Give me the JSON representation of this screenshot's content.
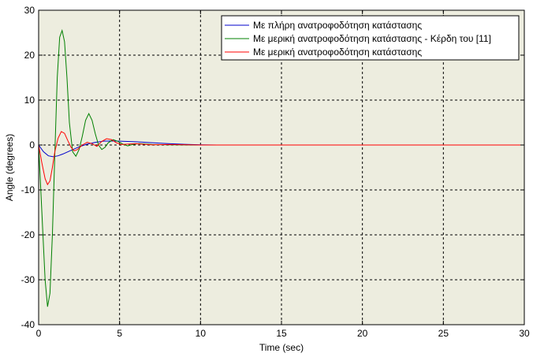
{
  "chart_data": {
    "type": "line",
    "title": "",
    "xlabel": "Time (sec)",
    "ylabel": "Angle (degrees)",
    "xlim": [
      0,
      30
    ],
    "ylim": [
      -40,
      30
    ],
    "xticks": [
      0,
      5,
      10,
      15,
      20,
      25,
      30
    ],
    "yticks": [
      -40,
      -30,
      -20,
      -10,
      0,
      10,
      20,
      30
    ],
    "xtick_labels": [
      "0",
      "5",
      "10",
      "15",
      "20",
      "25",
      "30"
    ],
    "ytick_labels": [
      "-40",
      "-30",
      "-20",
      "-10",
      "0",
      "10",
      "20",
      "30"
    ],
    "grid": true,
    "plot_background": "#ededdf",
    "legend_position": "top-right",
    "series": [
      {
        "name": "Με πλήρη ανατροφοδότηση κατάστασης",
        "color": "#0000cc",
        "x": [
          0,
          0.3,
          0.6,
          0.9,
          1.2,
          1.5,
          2.0,
          2.5,
          3.0,
          3.5,
          4.0,
          4.5,
          5.0,
          5.5,
          6.0,
          6.5,
          7.0,
          8.0,
          9.0,
          10.0,
          11.0
        ],
        "y": [
          0,
          -1.5,
          -2.4,
          -2.6,
          -2.4,
          -2.0,
          -1.2,
          -0.4,
          0.2,
          0.6,
          0.85,
          0.9,
          0.85,
          0.8,
          0.72,
          0.62,
          0.5,
          0.3,
          0.15,
          0.05,
          0.0
        ]
      },
      {
        "name": "Με μερική ανατροφοδότηση κατάστασης - Κέρδη του [11]",
        "color": "#008000",
        "x": [
          0,
          0.2,
          0.4,
          0.55,
          0.7,
          0.85,
          1.0,
          1.15,
          1.3,
          1.45,
          1.6,
          1.75,
          1.9,
          2.1,
          2.3,
          2.5,
          2.7,
          2.9,
          3.1,
          3.3,
          3.5,
          3.7,
          3.9,
          4.1,
          4.3,
          4.6,
          4.9,
          5.2,
          5.5,
          5.8,
          6.2,
          6.6,
          7.0,
          8.0,
          10.0,
          12.0,
          13.7
        ],
        "y": [
          0,
          -15,
          -30,
          -36,
          -33,
          -20,
          -2,
          15,
          24,
          25.5,
          23,
          15,
          5,
          -1.5,
          -2.5,
          -1,
          2,
          5.5,
          7,
          5.5,
          2.5,
          0,
          -1,
          -0.5,
          0.5,
          1.2,
          0.8,
          0.2,
          -0.2,
          0.1,
          0.3,
          0.2,
          0.1,
          0.05,
          0,
          0,
          0
        ]
      },
      {
        "name": "Με μερική ανατροφοδότηση κατάστασης",
        "color": "#ff0000",
        "x": [
          0,
          0.2,
          0.4,
          0.55,
          0.7,
          0.85,
          1.0,
          1.2,
          1.4,
          1.6,
          1.8,
          2.0,
          2.2,
          2.4,
          2.7,
          3.0,
          3.3,
          3.6,
          3.9,
          4.2,
          4.5,
          4.8,
          5.1,
          5.5,
          6.0,
          6.5,
          7.0,
          8.0,
          10.0,
          15.0,
          20.0,
          25.0,
          30.0
        ],
        "y": [
          0,
          -4,
          -7.5,
          -8.8,
          -8,
          -5,
          -1.5,
          1.5,
          3,
          2.6,
          1,
          -0.5,
          -1.3,
          -1,
          0,
          0.6,
          0.3,
          -0.3,
          0.8,
          1.4,
          1.2,
          0.5,
          0.1,
          0.2,
          0.3,
          0.15,
          0.05,
          0.1,
          0,
          0,
          0,
          0,
          0
        ]
      }
    ]
  }
}
